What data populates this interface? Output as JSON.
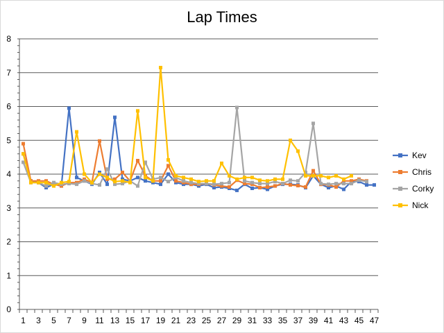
{
  "chart_data": {
    "type": "line",
    "title": "Lap Times",
    "xlabel": "",
    "ylabel": "",
    "ylim": [
      0,
      8
    ],
    "yticks": [
      0,
      1,
      2,
      3,
      4,
      5,
      6,
      7,
      8
    ],
    "xtick_labels": [
      1,
      3,
      5,
      7,
      9,
      11,
      13,
      15,
      17,
      19,
      21,
      23,
      25,
      27,
      29,
      31,
      33,
      35,
      37,
      39,
      41,
      43,
      45,
      47
    ],
    "x": [
      1,
      2,
      3,
      4,
      5,
      6,
      7,
      8,
      9,
      10,
      11,
      12,
      13,
      14,
      15,
      16,
      17,
      18,
      19,
      20,
      21,
      22,
      23,
      24,
      25,
      26,
      27,
      28,
      29,
      30,
      31,
      32,
      33,
      34,
      35,
      36,
      37,
      38,
      39,
      40,
      41,
      42,
      43,
      44,
      45,
      46,
      47
    ],
    "grid": true,
    "legend_position": "right",
    "series": [
      {
        "name": "Kev",
        "color": "#4472C4",
        "values": [
          4.6,
          3.8,
          3.75,
          3.6,
          3.7,
          3.65,
          5.95,
          3.9,
          3.8,
          3.7,
          4.05,
          3.7,
          5.68,
          3.85,
          3.8,
          3.9,
          3.8,
          3.75,
          3.7,
          4.0,
          3.75,
          3.7,
          3.7,
          3.65,
          3.7,
          3.6,
          3.62,
          3.58,
          3.52,
          3.7,
          3.58,
          3.6,
          3.55,
          3.65,
          3.7,
          3.7,
          3.68,
          3.6,
          3.95,
          3.7,
          3.6,
          3.65,
          3.55,
          3.78,
          3.78,
          3.68,
          3.68
        ]
      },
      {
        "name": "Chris",
        "color": "#ED7D31",
        "values": [
          4.9,
          3.8,
          3.8,
          3.8,
          3.7,
          3.65,
          3.75,
          3.75,
          3.85,
          3.75,
          4.98,
          3.85,
          3.85,
          4.05,
          3.8,
          4.4,
          3.95,
          3.8,
          3.8,
          4.25,
          3.8,
          3.75,
          3.7,
          3.7,
          3.72,
          3.68,
          3.65,
          3.62,
          3.82,
          3.72,
          3.7,
          3.6,
          3.62,
          3.65,
          3.72,
          3.68,
          3.66,
          3.62,
          4.1,
          3.7,
          3.68,
          3.62,
          3.8,
          3.8,
          3.85,
          3.8,
          null
        ]
      },
      {
        "name": "Corky",
        "color": "#A5A5A5",
        "values": [
          4.35,
          3.75,
          3.75,
          3.65,
          3.75,
          3.7,
          3.72,
          3.7,
          3.8,
          3.72,
          3.68,
          4.15,
          3.7,
          3.72,
          3.8,
          3.65,
          4.35,
          3.85,
          3.9,
          3.78,
          3.9,
          3.8,
          3.75,
          3.72,
          3.72,
          3.7,
          3.72,
          3.75,
          5.97,
          3.8,
          3.75,
          3.72,
          3.72,
          3.78,
          3.72,
          3.82,
          3.8,
          4.05,
          5.5,
          3.72,
          3.7,
          3.72,
          3.72,
          3.72,
          3.82,
          3.78,
          null
        ]
      },
      {
        "name": "Nick",
        "color": "#FFC000",
        "values": [
          4.6,
          3.75,
          3.75,
          3.75,
          3.65,
          3.75,
          3.78,
          5.25,
          4.0,
          3.75,
          4.0,
          3.9,
          3.78,
          3.8,
          3.75,
          5.87,
          3.9,
          3.8,
          7.15,
          4.42,
          3.95,
          3.9,
          3.85,
          3.78,
          3.8,
          3.8,
          4.32,
          3.95,
          3.85,
          3.9,
          3.9,
          3.82,
          3.8,
          3.85,
          3.85,
          5.0,
          4.68,
          3.95,
          3.95,
          3.95,
          3.9,
          3.95,
          3.85,
          3.95,
          null,
          null,
          null
        ]
      }
    ]
  }
}
